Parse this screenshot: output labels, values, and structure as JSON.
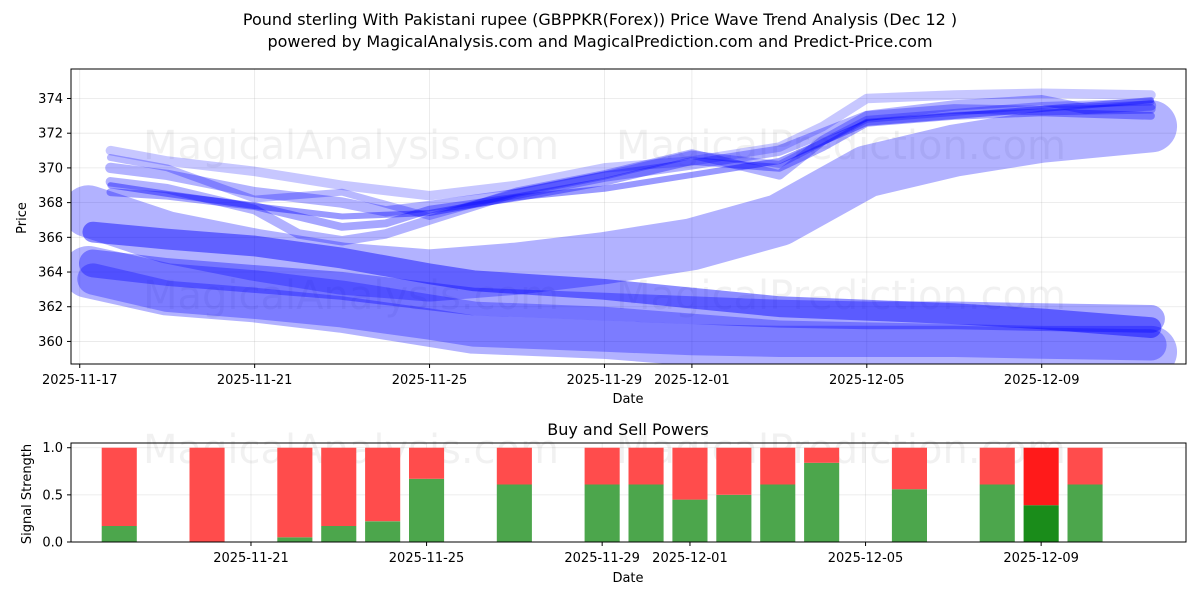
{
  "chart_data": [
    {
      "type": "line",
      "title_line1": "Pound sterling With Pakistani rupee (GBPPKR(Forex)) Price Wave Trend Analysis (Dec 12 )",
      "title_line2": "powered by MagicalAnalysis.com and MagicalPrediction.com and Predict-Price.com",
      "xlabel": "Date",
      "ylabel": "Price",
      "x_tick_labels": [
        "2025-11-17",
        "2025-11-21",
        "2025-11-25",
        "2025-11-29",
        "2025-12-01",
        "2025-12-05",
        "2025-12-09"
      ],
      "x_tick_days": [
        0,
        4,
        8,
        12,
        14,
        18,
        22
      ],
      "xlim_days": [
        -0.2,
        25.3
      ],
      "ylim": [
        358.7,
        375.7
      ],
      "y_ticks": [
        360,
        362,
        364,
        366,
        368,
        370,
        372,
        374
      ],
      "watermarks": [
        "MagicalAnalysis.com",
        "MagicalPrediction.com"
      ],
      "bands": [
        {
          "name": "lower-wave-wide",
          "x": [
            0.2,
            2,
            4,
            6,
            8,
            9,
            12,
            14,
            16,
            18,
            20,
            22,
            24.5
          ],
          "y": [
            364.0,
            363.0,
            362.6,
            362.0,
            361.2,
            360.8,
            360.5,
            360.1,
            359.7,
            359.6,
            359.5,
            359.4,
            359.4
          ],
          "width": 3.0,
          "alpha": 0.3
        },
        {
          "name": "lower-wave-1",
          "x": [
            0.3,
            2,
            4,
            6,
            8,
            9,
            12,
            14,
            16,
            18,
            20,
            22,
            24.5
          ],
          "y": [
            363.6,
            362.6,
            362.2,
            361.7,
            361.0,
            360.6,
            360.3,
            360.1,
            360.0,
            360.0,
            360.0,
            359.9,
            359.8
          ],
          "width": 1.8,
          "alpha": 0.3
        },
        {
          "name": "lower-wave-2",
          "x": [
            0.3,
            2,
            4,
            6,
            8,
            9,
            12,
            14,
            16,
            18,
            20,
            22,
            24.5
          ],
          "y": [
            364.5,
            364.0,
            363.6,
            363.2,
            362.6,
            362.3,
            362.0,
            361.8,
            361.6,
            361.5,
            361.5,
            361.4,
            361.3
          ],
          "width": 1.6,
          "alpha": 0.35
        },
        {
          "name": "lower-wave-3",
          "x": [
            0.3,
            2,
            4,
            6,
            8,
            9,
            12,
            14,
            16,
            18,
            20,
            22,
            24.5
          ],
          "y": [
            366.3,
            365.9,
            365.5,
            364.8,
            363.9,
            363.5,
            363.0,
            362.5,
            362.0,
            361.8,
            361.6,
            361.3,
            360.8
          ],
          "width": 1.2,
          "alpha": 0.45
        },
        {
          "name": "rising-wave-wide",
          "x": [
            0.2,
            2,
            4,
            6,
            8,
            10,
            12,
            14,
            16,
            18,
            20,
            22,
            24.5
          ],
          "y": [
            367.5,
            366.0,
            365.0,
            364.2,
            363.8,
            364.2,
            364.8,
            365.6,
            367.0,
            369.8,
            371.0,
            371.8,
            372.4
          ],
          "width": 3.0,
          "alpha": 0.3
        },
        {
          "name": "upper-wave-1",
          "x": [
            0.7,
            2,
            4,
            6,
            7,
            8,
            10,
            12,
            14,
            16,
            17,
            18,
            20,
            22,
            23,
            24.5
          ],
          "y": [
            370.0,
            369.6,
            368.6,
            368.0,
            367.5,
            367.8,
            368.5,
            369.5,
            370.2,
            371.0,
            372.0,
            373.0,
            373.6,
            373.9,
            373.4,
            373.6
          ],
          "width": 0.6,
          "alpha": 0.3
        },
        {
          "name": "upper-wave-2",
          "x": [
            0.7,
            2,
            4,
            5,
            6,
            7,
            8,
            10,
            12,
            14,
            16,
            17,
            18,
            20,
            22,
            24.5
          ],
          "y": [
            369.2,
            368.8,
            367.6,
            366.2,
            365.8,
            366.2,
            367.0,
            368.6,
            369.6,
            370.8,
            369.6,
            371.6,
            373.0,
            373.4,
            373.3,
            373.4
          ],
          "width": 0.55,
          "alpha": 0.3
        },
        {
          "name": "upper-wave-3",
          "x": [
            0.7,
            2,
            4,
            6,
            8,
            10,
            12,
            14,
            16,
            17,
            18,
            20,
            22,
            24.5
          ],
          "y": [
            371.0,
            370.4,
            369.8,
            369.0,
            368.4,
            369.0,
            370.0,
            370.4,
            371.2,
            372.4,
            374.0,
            374.2,
            374.3,
            374.2
          ],
          "width": 0.55,
          "alpha": 0.22
        },
        {
          "name": "upper-wave-4",
          "x": [
            0.7,
            2,
            4,
            6,
            7,
            8,
            10,
            12,
            14,
            16,
            17,
            18,
            20,
            22,
            24.5
          ],
          "y": [
            368.6,
            368.4,
            367.8,
            366.6,
            366.8,
            367.6,
            368.3,
            369.2,
            370.4,
            370.0,
            371.2,
            372.6,
            373.0,
            373.2,
            373.0
          ],
          "width": 0.45,
          "alpha": 0.35
        },
        {
          "name": "upper-wave-5",
          "x": [
            0.7,
            2,
            4,
            6,
            8,
            10,
            12,
            14,
            16,
            18,
            20,
            22,
            24.5
          ],
          "y": [
            369.0,
            368.5,
            367.8,
            367.2,
            367.4,
            368.3,
            368.8,
            369.6,
            370.4,
            372.6,
            373.0,
            373.4,
            373.9
          ],
          "width": 0.35,
          "alpha": 0.4
        },
        {
          "name": "upper-wave-6",
          "x": [
            0.7,
            2,
            4,
            6,
            8,
            10,
            12,
            14,
            16,
            18,
            20,
            22,
            24.5
          ],
          "y": [
            370.6,
            370.0,
            368.2,
            368.6,
            367.2,
            368.6,
            369.6,
            370.8,
            370.2,
            372.8,
            373.2,
            373.6,
            373.8
          ],
          "width": 0.4,
          "alpha": 0.28
        }
      ]
    },
    {
      "type": "bar",
      "title": "Buy and Sell Powers",
      "xlabel": "Date",
      "ylabel": "Signal Strength",
      "ylim": [
        0,
        1.05
      ],
      "y_ticks": [
        0.0,
        0.5,
        1.0
      ],
      "y_tick_labels": [
        "0.0",
        "0.5",
        "1.0"
      ],
      "x_tick_labels": [
        "2025-11-21",
        "2025-11-25",
        "2025-11-29",
        "2025-12-01",
        "2025-12-05",
        "2025-12-09"
      ],
      "x_tick_days": [
        4,
        8,
        12,
        14,
        18,
        22
      ],
      "xlim_days": [
        -0.1,
        25.3
      ],
      "bar_days": [
        1,
        3,
        5,
        6,
        7,
        8,
        10,
        12,
        13,
        14,
        15,
        16,
        17,
        19,
        21,
        22,
        23
      ],
      "buy": [
        0.17,
        0.0,
        0.05,
        0.17,
        0.22,
        0.67,
        0.61,
        0.61,
        0.61,
        0.45,
        0.5,
        0.61,
        0.84,
        0.56,
        0.61,
        0.39,
        0.61
      ],
      "highlight_day": 22,
      "colors": {
        "buy": "#4ca64c",
        "sell": "#ff4c4c",
        "buy_highlight": "#1a8c1a",
        "sell_highlight": "#ff1a1a",
        "band": "#0000ff"
      }
    }
  ]
}
